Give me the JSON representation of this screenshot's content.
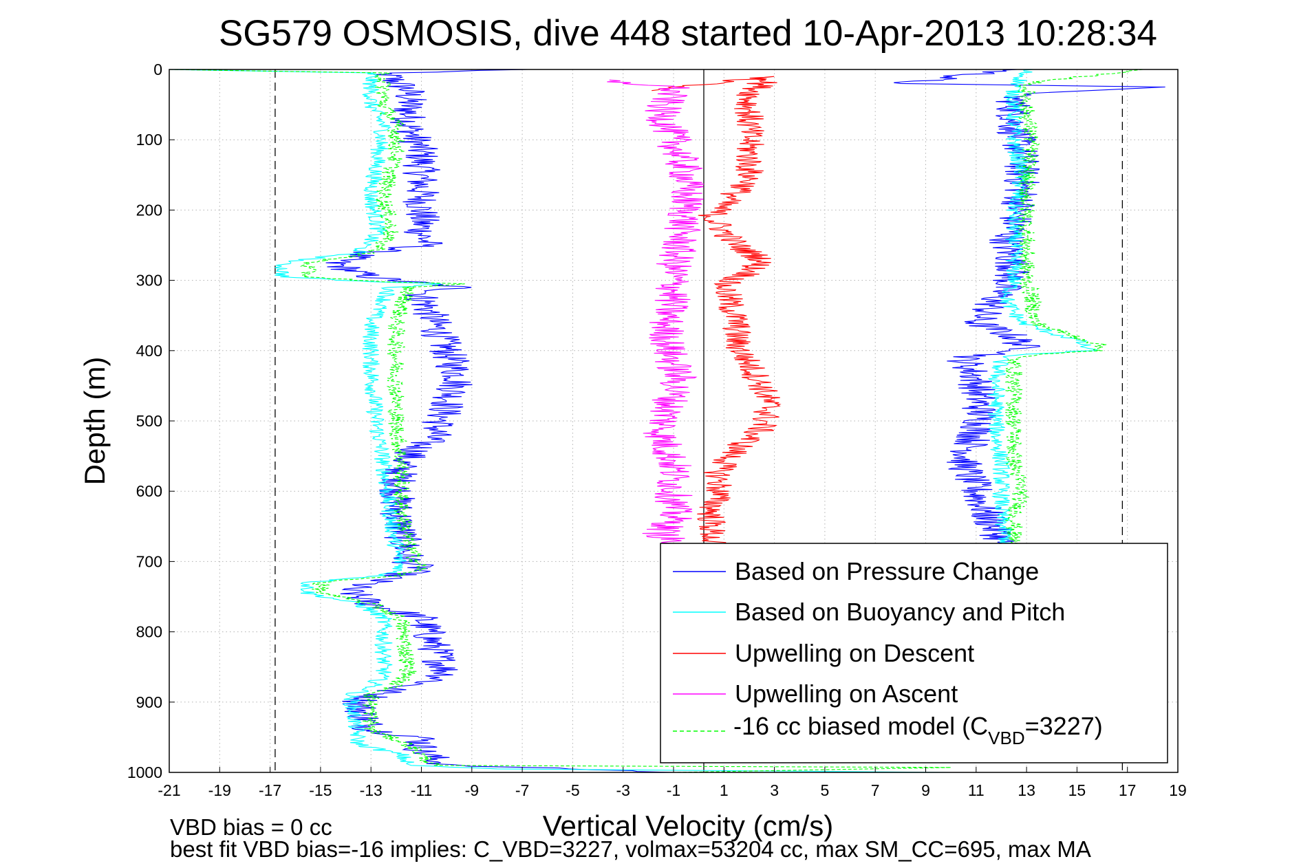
{
  "chart_data": {
    "type": "line",
    "title": "SG579 OSMOSIS, dive 448 started 10-Apr-2013 10:28:34",
    "xlabel": "Vertical Velocity (cm/s)",
    "ylabel": "Depth (m)",
    "xlim": [
      -21,
      19
    ],
    "ylim": [
      1000,
      0
    ],
    "y_reversed": true,
    "grid": true,
    "xticks": [
      "-21",
      "-19",
      "-17",
      "-15",
      "-13",
      "-11",
      "-9",
      "-7",
      "-5",
      "-3",
      "-1",
      "1",
      "3",
      "5",
      "7",
      "9",
      "11",
      "13",
      "15",
      "17",
      "19"
    ],
    "yticks": [
      "0",
      "100",
      "200",
      "300",
      "400",
      "500",
      "600",
      "700",
      "800",
      "900",
      "1000"
    ],
    "legend_position": "bottom-right",
    "legend": [
      {
        "label": "Based on Pressure Change",
        "color": "#0000ff"
      },
      {
        "label": "Based on Buoyancy and Pitch",
        "color": "#00ffff"
      },
      {
        "label": "Upwelling on Descent",
        "color": "#ff0000"
      },
      {
        "label": "Upwelling on Ascent",
        "color": "#ff00ff"
      },
      {
        "label_main": "-16 cc biased model (C",
        "label_sub": "VBD",
        "label_tail": "=3227)",
        "color": "#00ff00",
        "dashed": true
      }
    ],
    "reference_lines": {
      "vertical_solid_x": 0.2,
      "vertical_dashed_x": [
        -16.8,
        16.8
      ]
    },
    "series": [
      {
        "name": "Based on Pressure Change",
        "color": "#0000ff",
        "noise": 0.75,
        "points": [
          [
            -7,
            0
          ],
          [
            -12.5,
            5
          ],
          [
            -11.5,
            30
          ],
          [
            -11.5,
            80
          ],
          [
            -11,
            120
          ],
          [
            -11,
            180
          ],
          [
            -11,
            230
          ],
          [
            -10.8,
            250
          ],
          [
            -13,
            260
          ],
          [
            -14.5,
            275
          ],
          [
            -13.5,
            290
          ],
          [
            -13,
            295
          ],
          [
            -12,
            300
          ],
          [
            -9.5,
            310
          ],
          [
            -11,
            320
          ],
          [
            -10.5,
            360
          ],
          [
            -10,
            400
          ],
          [
            -9.5,
            440
          ],
          [
            -10,
            480
          ],
          [
            -10.5,
            520
          ],
          [
            -11.8,
            560
          ],
          [
            -12,
            620
          ],
          [
            -11.8,
            660
          ],
          [
            -11.5,
            700
          ],
          [
            -11,
            710
          ],
          [
            -12,
            720
          ],
          [
            -14,
            740
          ],
          [
            -13,
            760
          ],
          [
            -11,
            780
          ],
          [
            -10.5,
            820
          ],
          [
            -10,
            860
          ],
          [
            -10.5,
            870
          ],
          [
            -12,
            880
          ],
          [
            -13.5,
            900
          ],
          [
            -13,
            940
          ],
          [
            -11,
            950
          ],
          [
            -11,
            970
          ],
          [
            -10.5,
            980
          ],
          [
            -10,
            990
          ],
          [
            -5,
            995
          ],
          [
            -1,
            1000
          ],
          [
            12.5,
            0
          ],
          [
            8,
            20
          ],
          [
            18.5,
            25
          ],
          [
            12.5,
            35
          ],
          [
            12.5,
            80
          ],
          [
            12.8,
            120
          ],
          [
            12.8,
            180
          ],
          [
            12.5,
            220
          ],
          [
            12.2,
            250
          ],
          [
            12.5,
            280
          ],
          [
            12.3,
            300
          ],
          [
            11.5,
            340
          ],
          [
            11,
            360
          ],
          [
            12.5,
            380
          ],
          [
            13,
            400
          ],
          [
            10.5,
            410
          ],
          [
            11,
            440
          ],
          [
            11.2,
            500
          ],
          [
            10.5,
            560
          ],
          [
            11,
            600
          ],
          [
            11.5,
            640
          ],
          [
            12,
            670
          ],
          [
            12,
            700
          ]
        ]
      },
      {
        "name": "Based on Buoyancy and Pitch",
        "color": "#00ffff",
        "noise": 0.35,
        "points": [
          [
            -21,
            0
          ],
          [
            -13,
            5
          ],
          [
            -13,
            50
          ],
          [
            -12.5,
            80
          ],
          [
            -12.7,
            120
          ],
          [
            -13,
            180
          ],
          [
            -12.7,
            230
          ],
          [
            -13.5,
            260
          ],
          [
            -16.5,
            275
          ],
          [
            -16.5,
            295
          ],
          [
            -13,
            302
          ],
          [
            -10,
            305
          ],
          [
            -12.2,
            310
          ],
          [
            -13,
            360
          ],
          [
            -13,
            420
          ],
          [
            -12.8,
            500
          ],
          [
            -12.5,
            560
          ],
          [
            -12.3,
            620
          ],
          [
            -12,
            680
          ],
          [
            -11.8,
            710
          ],
          [
            -12.5,
            720
          ],
          [
            -15.5,
            730
          ],
          [
            -15.5,
            745
          ],
          [
            -13.5,
            760
          ],
          [
            -12.5,
            780
          ],
          [
            -12.5,
            860
          ],
          [
            -13,
            880
          ],
          [
            -13.8,
            890
          ],
          [
            -13.5,
            960
          ],
          [
            -11.8,
            975
          ],
          [
            -11.5,
            990
          ],
          [
            -8,
            995
          ],
          [
            10,
            1000
          ],
          [
            13,
            0
          ],
          [
            12.5,
            30
          ],
          [
            12.5,
            100
          ],
          [
            12.8,
            150
          ],
          [
            12.5,
            200
          ],
          [
            12.5,
            260
          ],
          [
            12.5,
            300
          ],
          [
            12.2,
            330
          ],
          [
            12.8,
            360
          ],
          [
            14,
            375
          ],
          [
            15,
            385
          ],
          [
            15.5,
            400
          ],
          [
            13,
            405
          ],
          [
            12,
            410
          ],
          [
            11.8,
            440
          ],
          [
            11.8,
            520
          ],
          [
            12,
            560
          ],
          [
            12,
            600
          ],
          [
            12,
            640
          ],
          [
            12.2,
            670
          ],
          [
            12.2,
            700
          ]
        ]
      },
      {
        "name": "Upwelling on Descent",
        "color": "#ff0000",
        "noise": 0.6,
        "points": [
          [
            -2,
            30
          ],
          [
            3,
            10
          ],
          [
            2.5,
            20
          ],
          [
            2,
            40
          ],
          [
            2,
            80
          ],
          [
            2,
            120
          ],
          [
            2,
            160
          ],
          [
            1,
            190
          ],
          [
            0.5,
            210
          ],
          [
            1,
            230
          ],
          [
            1.5,
            250
          ],
          [
            2.5,
            270
          ],
          [
            2,
            290
          ],
          [
            1,
            305
          ],
          [
            1.2,
            330
          ],
          [
            1.5,
            360
          ],
          [
            1.5,
            390
          ],
          [
            2,
            420
          ],
          [
            2.5,
            450
          ],
          [
            2.8,
            480
          ],
          [
            2.5,
            510
          ],
          [
            1.5,
            540
          ],
          [
            0.8,
            570
          ],
          [
            0.8,
            600
          ],
          [
            0.5,
            630
          ],
          [
            0.5,
            680
          ]
        ]
      },
      {
        "name": "Upwelling on Ascent",
        "color": "#ff00ff",
        "noise": 0.75,
        "points": [
          [
            -4,
            15
          ],
          [
            -1,
            25
          ],
          [
            -1.5,
            60
          ],
          [
            -1,
            100
          ],
          [
            -0.5,
            150
          ],
          [
            -0.5,
            200
          ],
          [
            -0.8,
            250
          ],
          [
            -1,
            280
          ],
          [
            -1,
            320
          ],
          [
            -1.3,
            360
          ],
          [
            -1.2,
            400
          ],
          [
            -0.8,
            440
          ],
          [
            -1.2,
            480
          ],
          [
            -1.5,
            520
          ],
          [
            -1,
            560
          ],
          [
            -1,
            600
          ],
          [
            -1,
            640
          ],
          [
            -1.5,
            660
          ],
          [
            -0.8,
            680
          ]
        ]
      },
      {
        "name": "-16 cc biased model (CVBD=3227)",
        "color": "#00ff00",
        "noise": 0.35,
        "dashed": true,
        "points": [
          [
            -21,
            0
          ],
          [
            -12.5,
            5
          ],
          [
            -12.5,
            50
          ],
          [
            -12,
            80
          ],
          [
            -12,
            120
          ],
          [
            -12.5,
            180
          ],
          [
            -12.2,
            230
          ],
          [
            -12.8,
            260
          ],
          [
            -15.5,
            275
          ],
          [
            -15.5,
            295
          ],
          [
            -12.5,
            302
          ],
          [
            -9.5,
            305
          ],
          [
            -11.5,
            310
          ],
          [
            -12,
            360
          ],
          [
            -12,
            420
          ],
          [
            -12,
            500
          ],
          [
            -11.8,
            560
          ],
          [
            -11.8,
            620
          ],
          [
            -11.5,
            680
          ],
          [
            -11,
            710
          ],
          [
            -12,
            720
          ],
          [
            -15,
            730
          ],
          [
            -15,
            745
          ],
          [
            -13,
            760
          ],
          [
            -11.8,
            780
          ],
          [
            -11.5,
            860
          ],
          [
            -12.2,
            880
          ],
          [
            -13,
            890
          ],
          [
            -13,
            940
          ],
          [
            -11.5,
            960
          ],
          [
            -11,
            975
          ],
          [
            -10.5,
            990
          ],
          [
            10,
            993
          ],
          [
            -1,
            1000
          ],
          [
            17.5,
            0
          ],
          [
            13,
            20
          ],
          [
            13,
            60
          ],
          [
            13.2,
            100
          ],
          [
            13,
            150
          ],
          [
            13,
            200
          ],
          [
            13,
            260
          ],
          [
            13,
            300
          ],
          [
            13.2,
            320
          ],
          [
            13.3,
            360
          ],
          [
            14.5,
            375
          ],
          [
            15.8,
            390
          ],
          [
            16,
            400
          ],
          [
            13.5,
            405
          ],
          [
            12.5,
            410
          ],
          [
            12.5,
            440
          ],
          [
            12.5,
            500
          ],
          [
            12.5,
            560
          ],
          [
            12.8,
            600
          ],
          [
            12.5,
            640
          ],
          [
            12.5,
            680
          ]
        ]
      }
    ]
  },
  "footnotes": {
    "line1": "VBD bias = 0 cc",
    "line2": "best fit VBD bias=-16 implies: C_VBD=3227, volmax=53204 cc, max SM_CC=695, max MA"
  }
}
